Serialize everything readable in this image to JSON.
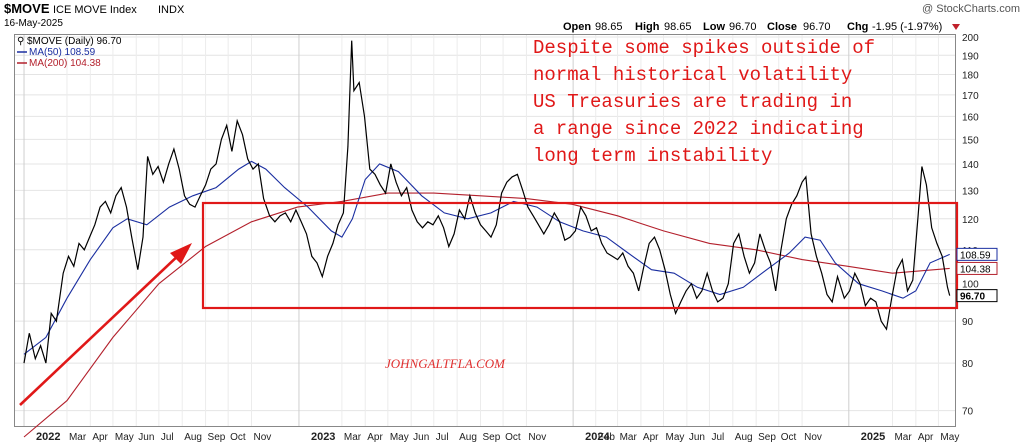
{
  "header": {
    "symbol": "$MOVE",
    "index_name": "ICE MOVE Index",
    "exchange": "INDX",
    "date": "16-May-2025",
    "source": "@ StockCharts.com",
    "open_label": "Open",
    "open": "98.65",
    "high_label": "High",
    "high": "98.65",
    "low_label": "Low",
    "low": "96.70",
    "close_label": "Close",
    "close": "96.70",
    "chg_label": "Chg",
    "chg": "-1.95 (-1.97%)"
  },
  "legend": {
    "main": "$MOVE (Daily) 96.70",
    "ma50": "MA(50) 108.59",
    "ma200": "MA(200) 104.38"
  },
  "annotation": {
    "lines": [
      "Despite some spikes outside of",
      "normal historical volatility",
      "US Treasuries are trading in",
      "a range since 2022 indicating",
      "long term instability"
    ],
    "watermark": "JOHNGALTFLA.COM"
  },
  "colors": {
    "price": "#000000",
    "ma50": "#1a2ea0",
    "ma200": "#b3202c",
    "annotation": "#e01818",
    "grid": "#e4e4e4"
  },
  "chart_data": {
    "type": "line",
    "title": "$MOVE ICE MOVE Index INDX",
    "ylim": [
      65,
      200
    ],
    "y_ticks": [
      70,
      80,
      90,
      100,
      110,
      120,
      130,
      140,
      150,
      160,
      170,
      180,
      190,
      200
    ],
    "x_labels": [
      "2022",
      "Mar",
      "Apr",
      "May",
      "Jun",
      "Jul",
      "Aug",
      "Sep",
      "Oct",
      "Nov",
      "2023",
      "Mar",
      "Apr",
      "May",
      "Jun",
      "Jul",
      "Aug",
      "Sep",
      "Oct",
      "Nov",
      "2024",
      "Feb",
      "Mar",
      "Apr",
      "May",
      "Jun",
      "Jul",
      "Aug",
      "Sep",
      "Oct",
      "Nov",
      "2025",
      "Mar",
      "Apr",
      "May"
    ],
    "last_value_labels": [
      {
        "series": "MA(50)",
        "value": "108.59"
      },
      {
        "series": "MA(200)",
        "value": "104.38"
      },
      {
        "series": "$MOVE",
        "value": "96.70"
      }
    ],
    "series": [
      {
        "name": "$MOVE",
        "role": "price",
        "points": [
          [
            "2022-01-03",
            80
          ],
          [
            "2022-01-10",
            87
          ],
          [
            "2022-01-18",
            81
          ],
          [
            "2022-01-25",
            84
          ],
          [
            "2022-02-01",
            80
          ],
          [
            "2022-02-08",
            92
          ],
          [
            "2022-02-15",
            90
          ],
          [
            "2022-02-24",
            103
          ],
          [
            "2022-03-03",
            108
          ],
          [
            "2022-03-10",
            105
          ],
          [
            "2022-03-17",
            112
          ],
          [
            "2022-03-24",
            110
          ],
          [
            "2022-03-31",
            114
          ],
          [
            "2022-04-07",
            118
          ],
          [
            "2022-04-14",
            124
          ],
          [
            "2022-04-21",
            126
          ],
          [
            "2022-04-28",
            122
          ],
          [
            "2022-05-05",
            128
          ],
          [
            "2022-05-12",
            131
          ],
          [
            "2022-05-19",
            124
          ],
          [
            "2022-05-26",
            114
          ],
          [
            "2022-06-03",
            104
          ],
          [
            "2022-06-10",
            114
          ],
          [
            "2022-06-16",
            143
          ],
          [
            "2022-06-23",
            136
          ],
          [
            "2022-06-30",
            139
          ],
          [
            "2022-07-07",
            133
          ],
          [
            "2022-07-14",
            140
          ],
          [
            "2022-07-21",
            146
          ],
          [
            "2022-07-28",
            138
          ],
          [
            "2022-08-04",
            128
          ],
          [
            "2022-08-11",
            125
          ],
          [
            "2022-08-18",
            124
          ],
          [
            "2022-08-25",
            128
          ],
          [
            "2022-09-01",
            132
          ],
          [
            "2022-09-08",
            138
          ],
          [
            "2022-09-15",
            140
          ],
          [
            "2022-09-22",
            150
          ],
          [
            "2022-09-29",
            156
          ],
          [
            "2022-10-06",
            145
          ],
          [
            "2022-10-13",
            158
          ],
          [
            "2022-10-20",
            152
          ],
          [
            "2022-10-27",
            142
          ],
          [
            "2022-11-03",
            138
          ],
          [
            "2022-11-10",
            140
          ],
          [
            "2022-11-17",
            127
          ],
          [
            "2022-11-25",
            121
          ],
          [
            "2022-12-02",
            119
          ],
          [
            "2022-12-09",
            121
          ],
          [
            "2022-12-16",
            122
          ],
          [
            "2022-12-23",
            119
          ],
          [
            "2022-12-30",
            123
          ],
          [
            "2023-01-06",
            119
          ],
          [
            "2023-01-13",
            115
          ],
          [
            "2023-01-20",
            108
          ],
          [
            "2023-01-27",
            106
          ],
          [
            "2023-02-03",
            102
          ],
          [
            "2023-02-10",
            108
          ],
          [
            "2023-02-17",
            112
          ],
          [
            "2023-02-24",
            118
          ],
          [
            "2023-03-03",
            122
          ],
          [
            "2023-03-09",
            147
          ],
          [
            "2023-03-14",
            198
          ],
          [
            "2023-03-17",
            172
          ],
          [
            "2023-03-24",
            176
          ],
          [
            "2023-03-31",
            160
          ],
          [
            "2023-04-07",
            138
          ],
          [
            "2023-04-14",
            136
          ],
          [
            "2023-04-21",
            132
          ],
          [
            "2023-04-28",
            129
          ],
          [
            "2023-05-05",
            140
          ],
          [
            "2023-05-12",
            133
          ],
          [
            "2023-05-19",
            128
          ],
          [
            "2023-05-26",
            131
          ],
          [
            "2023-06-02",
            123
          ],
          [
            "2023-06-09",
            119
          ],
          [
            "2023-06-16",
            117
          ],
          [
            "2023-06-23",
            119
          ],
          [
            "2023-06-30",
            118
          ],
          [
            "2023-07-07",
            121
          ],
          [
            "2023-07-14",
            117
          ],
          [
            "2023-07-21",
            111
          ],
          [
            "2023-07-28",
            115
          ],
          [
            "2023-08-04",
            123
          ],
          [
            "2023-08-11",
            120
          ],
          [
            "2023-08-18",
            128
          ],
          [
            "2023-08-25",
            122
          ],
          [
            "2023-09-01",
            118
          ],
          [
            "2023-09-08",
            116
          ],
          [
            "2023-09-15",
            114
          ],
          [
            "2023-09-22",
            118
          ],
          [
            "2023-09-29",
            129
          ],
          [
            "2023-10-06",
            133
          ],
          [
            "2023-10-13",
            135
          ],
          [
            "2023-10-20",
            136
          ],
          [
            "2023-10-27",
            130
          ],
          [
            "2023-11-03",
            124
          ],
          [
            "2023-11-10",
            121
          ],
          [
            "2023-11-17",
            118
          ],
          [
            "2023-11-24",
            115
          ],
          [
            "2023-12-01",
            118
          ],
          [
            "2023-12-08",
            122
          ],
          [
            "2023-12-15",
            119
          ],
          [
            "2023-12-22",
            113
          ],
          [
            "2023-12-29",
            114
          ],
          [
            "2024-01-05",
            116
          ],
          [
            "2024-01-12",
            124
          ],
          [
            "2024-01-19",
            121
          ],
          [
            "2024-01-26",
            116
          ],
          [
            "2024-02-02",
            117
          ],
          [
            "2024-02-09",
            112
          ],
          [
            "2024-02-16",
            109
          ],
          [
            "2024-02-23",
            108
          ],
          [
            "2024-03-01",
            107
          ],
          [
            "2024-03-08",
            109
          ],
          [
            "2024-03-15",
            105
          ],
          [
            "2024-03-22",
            103
          ],
          [
            "2024-03-29",
            98
          ],
          [
            "2024-04-05",
            105
          ],
          [
            "2024-04-12",
            112
          ],
          [
            "2024-04-19",
            114
          ],
          [
            "2024-04-26",
            110
          ],
          [
            "2024-05-03",
            104
          ],
          [
            "2024-05-10",
            97
          ],
          [
            "2024-05-17",
            92
          ],
          [
            "2024-05-24",
            95
          ],
          [
            "2024-05-31",
            98
          ],
          [
            "2024-06-07",
            100
          ],
          [
            "2024-06-14",
            96
          ],
          [
            "2024-06-21",
            98
          ],
          [
            "2024-06-28",
            103
          ],
          [
            "2024-07-05",
            98
          ],
          [
            "2024-07-12",
            95
          ],
          [
            "2024-07-19",
            96
          ],
          [
            "2024-07-26",
            100
          ],
          [
            "2024-08-02",
            112
          ],
          [
            "2024-08-09",
            115
          ],
          [
            "2024-08-16",
            108
          ],
          [
            "2024-08-23",
            103
          ],
          [
            "2024-08-30",
            106
          ],
          [
            "2024-09-06",
            115
          ],
          [
            "2024-09-13",
            110
          ],
          [
            "2024-09-20",
            106
          ],
          [
            "2024-09-27",
            98
          ],
          [
            "2024-10-04",
            110
          ],
          [
            "2024-10-11",
            120
          ],
          [
            "2024-10-18",
            125
          ],
          [
            "2024-10-25",
            128
          ],
          [
            "2024-11-01",
            133
          ],
          [
            "2024-11-06",
            135
          ],
          [
            "2024-11-13",
            115
          ],
          [
            "2024-11-20",
            108
          ],
          [
            "2024-11-27",
            103
          ],
          [
            "2024-12-04",
            97
          ],
          [
            "2024-12-11",
            95
          ],
          [
            "2024-12-18",
            102
          ],
          [
            "2024-12-27",
            96
          ],
          [
            "2025-01-03",
            98
          ],
          [
            "2025-01-10",
            103
          ],
          [
            "2025-01-17",
            100
          ],
          [
            "2025-01-24",
            94
          ],
          [
            "2025-01-31",
            96
          ],
          [
            "2025-02-07",
            95
          ],
          [
            "2025-02-14",
            90
          ],
          [
            "2025-02-21",
            88
          ],
          [
            "2025-02-28",
            96
          ],
          [
            "2025-03-07",
            104
          ],
          [
            "2025-03-14",
            107
          ],
          [
            "2025-03-21",
            98
          ],
          [
            "2025-03-28",
            101
          ],
          [
            "2025-04-04",
            121
          ],
          [
            "2025-04-09",
            139
          ],
          [
            "2025-04-15",
            132
          ],
          [
            "2025-04-22",
            117
          ],
          [
            "2025-04-29",
            112
          ],
          [
            "2025-05-06",
            108
          ],
          [
            "2025-05-13",
            99
          ],
          [
            "2025-05-16",
            96.7
          ]
        ]
      },
      {
        "name": "MA(50)",
        "role": "ma50",
        "points": [
          [
            "2022-01-03",
            82
          ],
          [
            "2022-02-01",
            86
          ],
          [
            "2022-03-01",
            96
          ],
          [
            "2022-04-01",
            107
          ],
          [
            "2022-05-01",
            117
          ],
          [
            "2022-05-20",
            120
          ],
          [
            "2022-06-15",
            118
          ],
          [
            "2022-07-15",
            124
          ],
          [
            "2022-08-15",
            128
          ],
          [
            "2022-09-15",
            131
          ],
          [
            "2022-10-15",
            138
          ],
          [
            "2022-11-01",
            141
          ],
          [
            "2022-11-20",
            138
          ],
          [
            "2022-12-15",
            131
          ],
          [
            "2023-01-15",
            124
          ],
          [
            "2023-02-15",
            116
          ],
          [
            "2023-03-01",
            114
          ],
          [
            "2023-03-15",
            120
          ],
          [
            "2023-04-01",
            134
          ],
          [
            "2023-04-20",
            140
          ],
          [
            "2023-05-15",
            137
          ],
          [
            "2023-06-15",
            128
          ],
          [
            "2023-07-15",
            122
          ],
          [
            "2023-08-15",
            120
          ],
          [
            "2023-09-15",
            122
          ],
          [
            "2023-10-15",
            126
          ],
          [
            "2023-11-15",
            124
          ],
          [
            "2023-12-15",
            119
          ],
          [
            "2024-01-15",
            116
          ],
          [
            "2024-02-15",
            114
          ],
          [
            "2024-03-15",
            109
          ],
          [
            "2024-04-15",
            104
          ],
          [
            "2024-05-15",
            103
          ],
          [
            "2024-06-15",
            99
          ],
          [
            "2024-07-15",
            97
          ],
          [
            "2024-08-15",
            99
          ],
          [
            "2024-09-15",
            104
          ],
          [
            "2024-10-15",
            109
          ],
          [
            "2024-11-05",
            114
          ],
          [
            "2024-11-25",
            113
          ],
          [
            "2024-12-15",
            106
          ],
          [
            "2025-01-15",
            100
          ],
          [
            "2025-02-15",
            98
          ],
          [
            "2025-03-15",
            96
          ],
          [
            "2025-04-01",
            98
          ],
          [
            "2025-04-20",
            106
          ],
          [
            "2025-05-16",
            108.59
          ]
        ]
      },
      {
        "name": "MA(200)",
        "role": "ma200",
        "points": [
          [
            "2022-01-03",
            65
          ],
          [
            "2022-03-01",
            72
          ],
          [
            "2022-05-01",
            86
          ],
          [
            "2022-07-01",
            100
          ],
          [
            "2022-09-01",
            111
          ],
          [
            "2022-11-01",
            119
          ],
          [
            "2023-01-01",
            124
          ],
          [
            "2023-03-01",
            126
          ],
          [
            "2023-05-01",
            129
          ],
          [
            "2023-07-01",
            129
          ],
          [
            "2023-09-01",
            128
          ],
          [
            "2023-11-01",
            127
          ],
          [
            "2024-01-01",
            125
          ],
          [
            "2024-03-01",
            121
          ],
          [
            "2024-05-01",
            116
          ],
          [
            "2024-07-01",
            112
          ],
          [
            "2024-09-01",
            110
          ],
          [
            "2024-11-01",
            107
          ],
          [
            "2025-01-01",
            105
          ],
          [
            "2025-03-01",
            103
          ],
          [
            "2025-05-16",
            104.38
          ]
        ]
      }
    ]
  }
}
